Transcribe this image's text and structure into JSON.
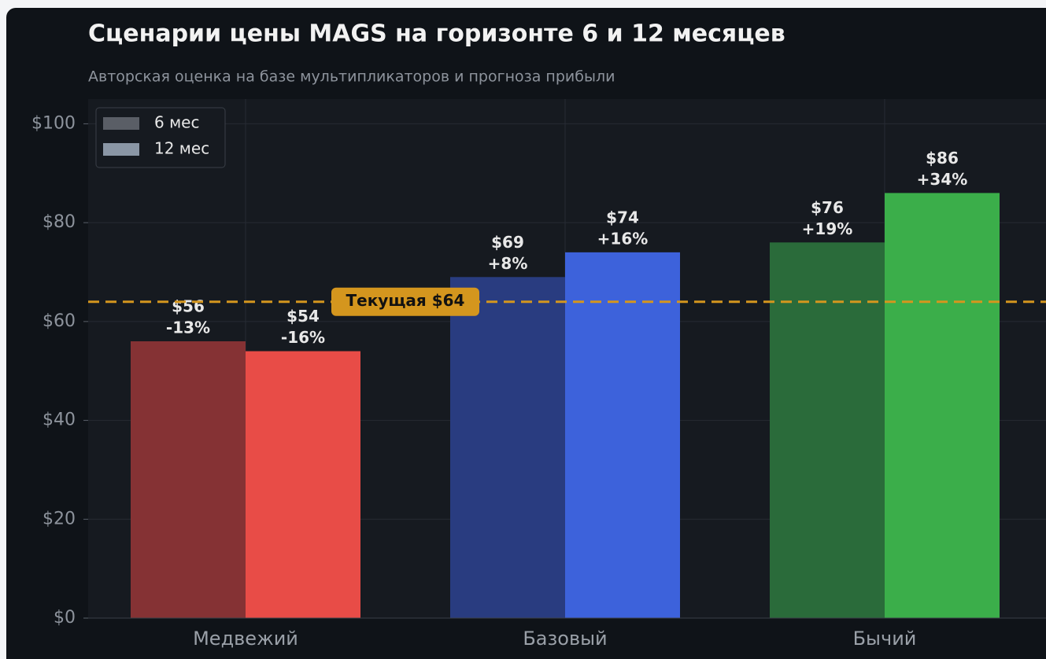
{
  "chart_data": {
    "type": "bar",
    "title": "Сценарии цены MAGS на горизонте 6 и 12 месяцев",
    "subtitle": "Авторская оценка на базе мультипликаторов и прогноза прибыли",
    "categories": [
      "Медвежий",
      "Базовый",
      "Бычий"
    ],
    "series": [
      {
        "name": "6 мес",
        "color": "#5a5e66",
        "colors": [
          "#853234",
          "#293c80",
          "#2a6b3a"
        ],
        "values": [
          56,
          69,
          76
        ],
        "value_labels": [
          "$56",
          "$69",
          "$76"
        ],
        "change_labels": [
          "-13%",
          "+8%",
          "+19%"
        ]
      },
      {
        "name": "12 мес",
        "color": "#8a96a5",
        "colors": [
          "#e84c47",
          "#3d62db",
          "#3bae4a"
        ],
        "values": [
          54,
          74,
          86
        ],
        "value_labels": [
          "$54",
          "$74",
          "$86"
        ],
        "change_labels": [
          "-16%",
          "+16%",
          "+34%"
        ]
      }
    ],
    "reference_line": {
      "value": 64,
      "label": "Текущая $64",
      "color": "#d4961e"
    },
    "ylim": [
      0,
      105
    ],
    "yticks": [
      {
        "value": 0,
        "label": "$0"
      },
      {
        "value": 20,
        "label": "$20"
      },
      {
        "value": 40,
        "label": "$40"
      },
      {
        "value": 60,
        "label": "$60"
      },
      {
        "value": 80,
        "label": "$80"
      },
      {
        "value": 100,
        "label": "$100"
      }
    ],
    "grid": true,
    "legend": "upper left"
  }
}
